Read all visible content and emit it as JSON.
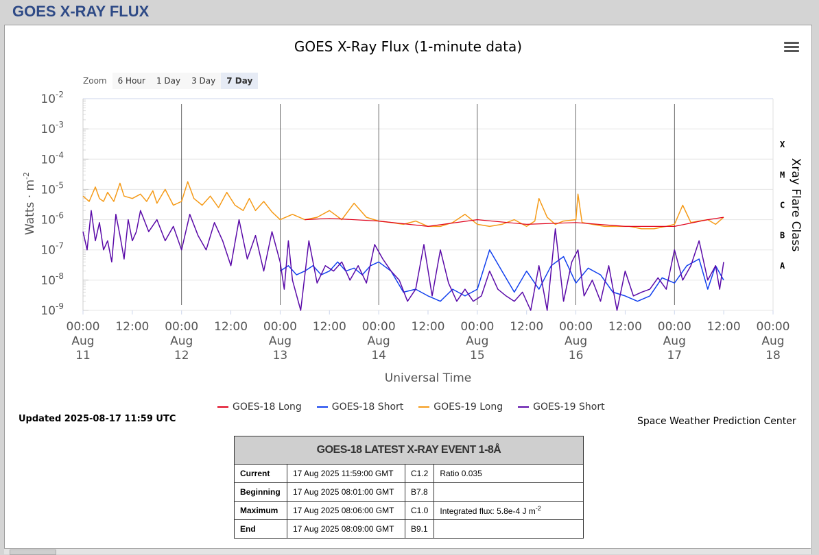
{
  "page_title": "GOES X-RAY FLUX",
  "zoom": {
    "label": "Zoom",
    "buttons": [
      "6 Hour",
      "1 Day",
      "3 Day",
      "7 Day"
    ],
    "active": "7 Day"
  },
  "legend": [
    {
      "name": "GOES-18 Long",
      "color": "#e0001a"
    },
    {
      "name": "GOES-18 Short",
      "color": "#1140ee"
    },
    {
      "name": "GOES-19 Long",
      "color": "#f59a17"
    },
    {
      "name": "GOES-19 Short",
      "color": "#5a0aa8"
    }
  ],
  "updated": "Updated 2025-08-17 11:59 UTC",
  "credit": "Space Weather Prediction Center",
  "event_table": {
    "title": "GOES-18 LATEST X-RAY EVENT 1-8Å",
    "rows": [
      {
        "label": "Current",
        "time": "17 Aug 2025 11:59:00 GMT",
        "class": "C1.2",
        "extra": "Ratio 0.035"
      },
      {
        "label": "Beginning",
        "time": "17 Aug 2025 08:01:00 GMT",
        "class": "B7.8",
        "extra": ""
      },
      {
        "label": "Maximum",
        "time": "17 Aug 2025 08:06:00 GMT",
        "class": "C1.0",
        "extra": "Integrated flux: 5.8e-4 J m"
      },
      {
        "label": "End",
        "time": "17 Aug 2025 08:09:00 GMT",
        "class": "B9.1",
        "extra": ""
      }
    ],
    "extra_sup": "-2"
  },
  "chart_data": {
    "type": "line",
    "title": "GOES X-Ray Flux (1-minute data)",
    "xlabel": "Universal Time",
    "ylabel": "Watts · m",
    "ylabel_sup": "-2",
    "y2label": "Xray Flare Class",
    "yscale": "log",
    "ylim": [
      1e-09,
      0.01
    ],
    "y_ticks": [
      {
        "base": "10",
        "exp": "-2",
        "value": 0.01
      },
      {
        "base": "10",
        "exp": "-3",
        "value": 0.001
      },
      {
        "base": "10",
        "exp": "-4",
        "value": 0.0001
      },
      {
        "base": "10",
        "exp": "-5",
        "value": 1e-05
      },
      {
        "base": "10",
        "exp": "-6",
        "value": 1e-06
      },
      {
        "base": "10",
        "exp": "-7",
        "value": 1e-07
      },
      {
        "base": "10",
        "exp": "-8",
        "value": 1e-08
      },
      {
        "base": "10",
        "exp": "-9",
        "value": 1e-09
      }
    ],
    "flare_classes": [
      {
        "label": "X",
        "value": 0.0003
      },
      {
        "label": "M",
        "value": 3e-05
      },
      {
        "label": "C",
        "value": 3e-06
      },
      {
        "label": "B",
        "value": 3e-07
      },
      {
        "label": "A",
        "value": 3e-08
      }
    ],
    "xlim": [
      "2025-08-11T00:00",
      "2025-08-18T00:00"
    ],
    "x_ticks": [
      {
        "time": "2025-08-11T00:00",
        "lines": [
          "00:00",
          "Aug",
          "11"
        ]
      },
      {
        "time": "2025-08-11T12:00",
        "lines": [
          "12:00"
        ]
      },
      {
        "time": "2025-08-12T00:00",
        "lines": [
          "00:00",
          "Aug",
          "12"
        ]
      },
      {
        "time": "2025-08-12T12:00",
        "lines": [
          "12:00"
        ]
      },
      {
        "time": "2025-08-13T00:00",
        "lines": [
          "00:00",
          "Aug",
          "13"
        ]
      },
      {
        "time": "2025-08-13T12:00",
        "lines": [
          "12:00"
        ]
      },
      {
        "time": "2025-08-14T00:00",
        "lines": [
          "00:00",
          "Aug",
          "14"
        ]
      },
      {
        "time": "2025-08-14T12:00",
        "lines": [
          "12:00"
        ]
      },
      {
        "time": "2025-08-15T00:00",
        "lines": [
          "00:00",
          "Aug",
          "15"
        ]
      },
      {
        "time": "2025-08-15T12:00",
        "lines": [
          "12:00"
        ]
      },
      {
        "time": "2025-08-16T00:00",
        "lines": [
          "00:00",
          "Aug",
          "16"
        ]
      },
      {
        "time": "2025-08-16T12:00",
        "lines": [
          "12:00"
        ]
      },
      {
        "time": "2025-08-17T00:00",
        "lines": [
          "00:00",
          "Aug",
          "17"
        ]
      },
      {
        "time": "2025-08-17T12:00",
        "lines": [
          "12:00"
        ]
      },
      {
        "time": "2025-08-18T00:00",
        "lines": [
          "00:00",
          "Aug",
          "18"
        ]
      }
    ],
    "day_lines": [
      "2025-08-12T00:00",
      "2025-08-13T00:00",
      "2025-08-14T00:00",
      "2025-08-15T00:00",
      "2025-08-16T00:00",
      "2025-08-17T00:00"
    ],
    "series": [
      {
        "name": "GOES-19 Long",
        "color": "#f59a17",
        "width": 1.5,
        "x": [
          "2025-08-11T00:00",
          "2025-08-11T01:30",
          "2025-08-11T03:00",
          "2025-08-11T04:00",
          "2025-08-11T05:00",
          "2025-08-11T06:00",
          "2025-08-11T07:30",
          "2025-08-11T09:00",
          "2025-08-11T10:00",
          "2025-08-11T12:00",
          "2025-08-11T14:00",
          "2025-08-11T15:30",
          "2025-08-11T17:00",
          "2025-08-11T18:00",
          "2025-08-11T20:00",
          "2025-08-11T22:00",
          "2025-08-12T00:00",
          "2025-08-12T01:30",
          "2025-08-12T03:00",
          "2025-08-12T05:00",
          "2025-08-12T07:00",
          "2025-08-12T09:00",
          "2025-08-12T11:00",
          "2025-08-12T13:00",
          "2025-08-12T15:00",
          "2025-08-12T16:30",
          "2025-08-12T18:00",
          "2025-08-12T20:00",
          "2025-08-12T22:00",
          "2025-08-13T00:00",
          "2025-08-13T03:00",
          "2025-08-13T06:00",
          "2025-08-13T09:00",
          "2025-08-13T12:00",
          "2025-08-13T15:00",
          "2025-08-13T18:00",
          "2025-08-13T21:00",
          "2025-08-14T00:00",
          "2025-08-14T03:00",
          "2025-08-14T06:00",
          "2025-08-14T09:00",
          "2025-08-14T12:00",
          "2025-08-14T15:00",
          "2025-08-14T18:00",
          "2025-08-14T21:00",
          "2025-08-15T00:00",
          "2025-08-15T03:00",
          "2025-08-15T06:00",
          "2025-08-15T09:00",
          "2025-08-15T12:00",
          "2025-08-15T14:00",
          "2025-08-15T15:00",
          "2025-08-15T17:00",
          "2025-08-15T19:00",
          "2025-08-15T21:00",
          "2025-08-16T00:00",
          "2025-08-16T00:30",
          "2025-08-16T01:30",
          "2025-08-16T04:00",
          "2025-08-16T07:00",
          "2025-08-16T10:00",
          "2025-08-16T13:00",
          "2025-08-16T16:00",
          "2025-08-16T19:00",
          "2025-08-16T22:00",
          "2025-08-17T00:00",
          "2025-08-17T02:00",
          "2025-08-17T04:00",
          "2025-08-17T06:00",
          "2025-08-17T08:06",
          "2025-08-17T10:00",
          "2025-08-17T11:59"
        ],
        "y": [
          6e-06,
          4e-06,
          1.2e-05,
          5e-06,
          4e-06,
          8e-06,
          4e-06,
          1.6e-05,
          6e-06,
          5e-06,
          7e-06,
          4e-06,
          9e-06,
          3.5e-06,
          1e-05,
          3e-06,
          4e-06,
          1.8e-05,
          5e-06,
          3e-06,
          6e-06,
          2.5e-06,
          8e-06,
          3e-06,
          2e-06,
          5e-06,
          2e-06,
          4e-06,
          1.8e-06,
          1e-06,
          1.5e-06,
          1e-06,
          1.2e-06,
          2e-06,
          1e-06,
          3.5e-06,
          1.2e-06,
          9e-07,
          8e-07,
          7e-07,
          9e-07,
          6e-07,
          6e-07,
          8e-07,
          1.5e-06,
          7e-07,
          6e-07,
          7e-07,
          1e-06,
          6e-07,
          9e-07,
          5e-06,
          1.2e-06,
          7e-07,
          9e-07,
          1e-06,
          7e-06,
          8e-07,
          7e-07,
          6e-07,
          6e-07,
          6e-07,
          5e-07,
          5e-07,
          6e-07,
          7e-07,
          3e-06,
          8e-07,
          9e-07,
          1e-06,
          7e-07,
          1.2e-06
        ]
      },
      {
        "name": "GOES-18 Long",
        "color": "#e0001a",
        "width": 1.2,
        "x": [
          "2025-08-13T06:00",
          "2025-08-13T12:00",
          "2025-08-14T00:00",
          "2025-08-14T12:00",
          "2025-08-15T00:00",
          "2025-08-15T12:00",
          "2025-08-16T00:00",
          "2025-08-16T12:00",
          "2025-08-17T00:00",
          "2025-08-17T08:06",
          "2025-08-17T11:59"
        ],
        "y": [
          1e-06,
          1.1e-06,
          9e-07,
          6e-07,
          1e-06,
          7e-07,
          8e-07,
          6e-07,
          6e-07,
          1e-06,
          1.2e-06
        ]
      },
      {
        "name": "GOES-18 Short",
        "color": "#1140ee",
        "width": 1.5,
        "x": [
          "2025-08-13T00:00",
          "2025-08-13T02:00",
          "2025-08-13T04:00",
          "2025-08-13T06:00",
          "2025-08-13T08:00",
          "2025-08-13T10:00",
          "2025-08-13T12:00",
          "2025-08-13T14:00",
          "2025-08-13T16:00",
          "2025-08-13T18:00",
          "2025-08-13T20:00",
          "2025-08-13T22:00",
          "2025-08-14T00:00",
          "2025-08-14T03:00",
          "2025-08-14T06:00",
          "2025-08-14T09:00",
          "2025-08-14T12:00",
          "2025-08-14T15:00",
          "2025-08-14T18:00",
          "2025-08-14T21:00",
          "2025-08-15T00:00",
          "2025-08-15T03:00",
          "2025-08-15T06:00",
          "2025-08-15T09:00",
          "2025-08-15T12:00",
          "2025-08-15T15:00",
          "2025-08-15T18:00",
          "2025-08-15T21:00",
          "2025-08-16T00:00",
          "2025-08-16T03:00",
          "2025-08-16T06:00",
          "2025-08-16T09:00",
          "2025-08-16T12:00",
          "2025-08-16T15:00",
          "2025-08-16T18:00",
          "2025-08-16T21:00",
          "2025-08-17T00:00",
          "2025-08-17T03:00",
          "2025-08-17T06:00",
          "2025-08-17T08:06",
          "2025-08-17T10:00",
          "2025-08-17T11:59"
        ],
        "y": [
          2e-08,
          3e-08,
          1.5e-08,
          2e-08,
          3e-08,
          1.5e-08,
          2e-08,
          4e-08,
          2e-08,
          2.5e-08,
          1.5e-08,
          3e-08,
          4e-08,
          2e-08,
          4e-09,
          5e-09,
          3e-09,
          2e-09,
          5e-09,
          3e-09,
          5e-09,
          1e-07,
          2e-08,
          4e-09,
          2e-08,
          5e-09,
          3e-08,
          6e-08,
          8e-09,
          2.5e-08,
          1.5e-08,
          4e-09,
          3e-09,
          2e-09,
          3e-09,
          1.2e-08,
          8e-09,
          3e-08,
          5e-08,
          5e-09,
          3e-08,
          1e-08
        ]
      },
      {
        "name": "GOES-19 Short",
        "color": "#5a0aa8",
        "width": 1.5,
        "x": [
          "2025-08-11T00:00",
          "2025-08-11T01:00",
          "2025-08-11T02:00",
          "2025-08-11T03:00",
          "2025-08-11T04:00",
          "2025-08-11T05:00",
          "2025-08-11T06:00",
          "2025-08-11T07:00",
          "2025-08-11T08:00",
          "2025-08-11T09:00",
          "2025-08-11T10:00",
          "2025-08-11T11:00",
          "2025-08-11T12:00",
          "2025-08-11T13:00",
          "2025-08-11T14:00",
          "2025-08-11T16:00",
          "2025-08-11T18:00",
          "2025-08-11T20:00",
          "2025-08-11T22:00",
          "2025-08-12T00:00",
          "2025-08-12T02:00",
          "2025-08-12T04:00",
          "2025-08-12T06:00",
          "2025-08-12T08:00",
          "2025-08-12T10:00",
          "2025-08-12T12:00",
          "2025-08-12T14:00",
          "2025-08-12T16:00",
          "2025-08-12T18:00",
          "2025-08-12T20:00",
          "2025-08-12T22:00",
          "2025-08-13T00:00",
          "2025-08-13T01:00",
          "2025-08-13T02:00",
          "2025-08-13T03:00",
          "2025-08-13T05:00",
          "2025-08-13T07:00",
          "2025-08-13T09:00",
          "2025-08-13T11:00",
          "2025-08-13T13:00",
          "2025-08-13T15:00",
          "2025-08-13T17:00",
          "2025-08-13T19:00",
          "2025-08-13T21:00",
          "2025-08-13T23:00",
          "2025-08-14T01:00",
          "2025-08-14T03:00",
          "2025-08-14T05:00",
          "2025-08-14T07:00",
          "2025-08-14T09:00",
          "2025-08-14T11:00",
          "2025-08-14T13:00",
          "2025-08-14T15:00",
          "2025-08-14T17:00",
          "2025-08-14T19:00",
          "2025-08-14T21:00",
          "2025-08-14T23:00",
          "2025-08-15T01:00",
          "2025-08-15T03:00",
          "2025-08-15T05:00",
          "2025-08-15T07:00",
          "2025-08-15T09:00",
          "2025-08-15T11:00",
          "2025-08-15T13:00",
          "2025-08-15T15:00",
          "2025-08-15T17:00",
          "2025-08-15T19:00",
          "2025-08-15T21:00",
          "2025-08-15T23:00",
          "2025-08-16T00:30",
          "2025-08-16T02:00",
          "2025-08-16T04:00",
          "2025-08-16T06:00",
          "2025-08-16T08:00",
          "2025-08-16T10:00",
          "2025-08-16T12:00",
          "2025-08-16T14:00",
          "2025-08-16T16:00",
          "2025-08-16T18:00",
          "2025-08-16T20:00",
          "2025-08-16T22:00",
          "2025-08-17T00:00",
          "2025-08-17T02:00",
          "2025-08-17T04:00",
          "2025-08-17T06:00",
          "2025-08-17T08:06",
          "2025-08-17T10:00",
          "2025-08-17T11:00",
          "2025-08-17T11:59"
        ],
        "y": [
          4e-07,
          1e-07,
          2e-06,
          2e-07,
          8e-07,
          1e-07,
          2e-07,
          4e-08,
          1.5e-06,
          3e-07,
          5e-08,
          1e-06,
          2e-07,
          4e-07,
          2e-06,
          4e-07,
          1e-06,
          2e-07,
          6e-07,
          1e-07,
          1.5e-06,
          3e-07,
          1e-07,
          8e-07,
          2e-07,
          3e-08,
          1e-06,
          5e-08,
          3e-07,
          2e-08,
          4e-07,
          4e-08,
          5e-09,
          2e-07,
          1e-08,
          1e-09,
          2e-07,
          8e-09,
          3e-08,
          2e-08,
          4e-08,
          1e-08,
          3e-08,
          8e-09,
          1.5e-07,
          5e-08,
          2e-08,
          1e-08,
          2e-09,
          5e-09,
          1.5e-07,
          3e-09,
          1e-07,
          8e-09,
          2e-09,
          5e-09,
          2e-09,
          3e-09,
          2e-08,
          5e-09,
          3e-09,
          2e-09,
          4e-09,
          1e-09,
          3e-08,
          1e-09,
          5e-07,
          2e-09,
          4e-08,
          1e-07,
          3e-09,
          1e-08,
          2e-09,
          3e-08,
          1e-09,
          2e-08,
          3e-09,
          4e-09,
          5e-09,
          1.2e-08,
          5e-09,
          1e-07,
          1e-08,
          3e-08,
          2e-07,
          1e-08,
          3e-08,
          5e-09,
          4e-08
        ]
      }
    ]
  }
}
